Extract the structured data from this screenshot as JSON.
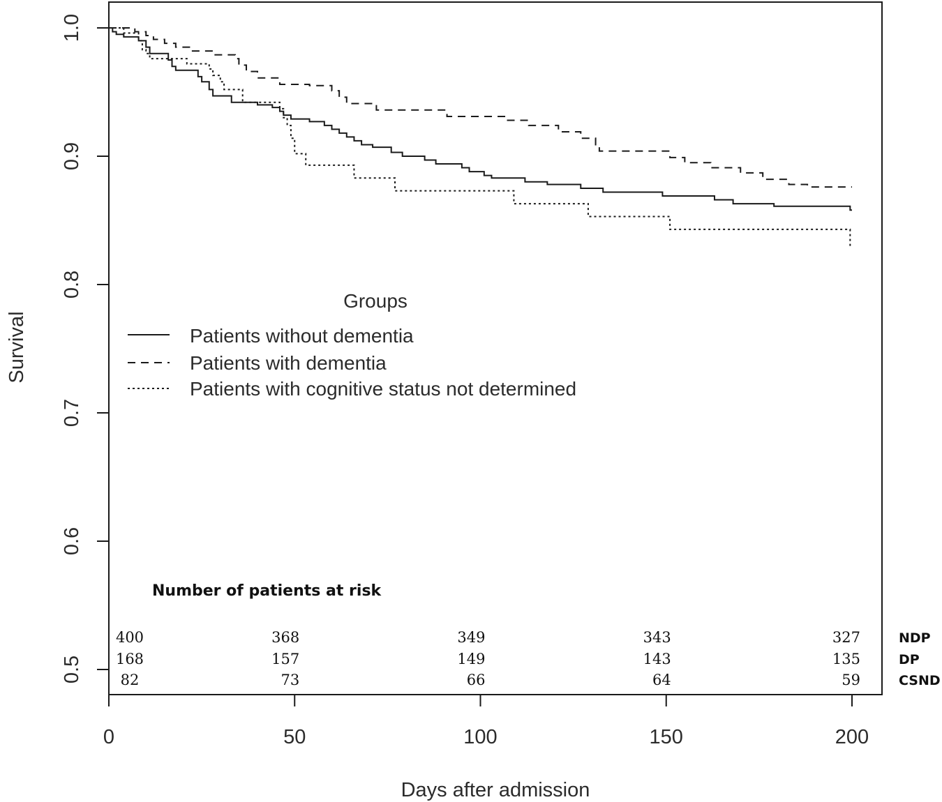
{
  "chart_data": {
    "type": "line",
    "xlabel": "Days after admission",
    "ylabel": "Survival",
    "xlim": [
      0,
      200
    ],
    "ylim": [
      0.5,
      1.0
    ],
    "x_ticks": [
      "0",
      "50",
      "100",
      "150",
      "200"
    ],
    "y_ticks": [
      "0.5",
      "0.6",
      "0.7",
      "0.8",
      "0.9",
      "1.0"
    ],
    "grid": false,
    "legend": {
      "title": "Groups",
      "placement": "center-left",
      "entries": [
        {
          "label": "Patients without dementia",
          "style": "solid"
        },
        {
          "label": "Patients with dementia",
          "style": "dashed"
        },
        {
          "label": "Patients with cognitive status not determined",
          "style": "dotted"
        }
      ]
    },
    "series": [
      {
        "name": "Patients without dementia",
        "style": "solid",
        "color": "#1a1a1a",
        "steps": [
          [
            0,
            1.0
          ],
          [
            1,
            0.997
          ],
          [
            2,
            0.995
          ],
          [
            4,
            0.993
          ],
          [
            8,
            0.99
          ],
          [
            10,
            0.985
          ],
          [
            11,
            0.98
          ],
          [
            16,
            0.975
          ],
          [
            17,
            0.97
          ],
          [
            18,
            0.967
          ],
          [
            24,
            0.962
          ],
          [
            25,
            0.958
          ],
          [
            27,
            0.952
          ],
          [
            28,
            0.947
          ],
          [
            33,
            0.942
          ],
          [
            40,
            0.94
          ],
          [
            44,
            0.938
          ],
          [
            46,
            0.935
          ],
          [
            47,
            0.932
          ],
          [
            49,
            0.929
          ],
          [
            54,
            0.927
          ],
          [
            58,
            0.924
          ],
          [
            60,
            0.921
          ],
          [
            62,
            0.918
          ],
          [
            64,
            0.915
          ],
          [
            66,
            0.912
          ],
          [
            68,
            0.909
          ],
          [
            71,
            0.907
          ],
          [
            76,
            0.903
          ],
          [
            79,
            0.9
          ],
          [
            85,
            0.897
          ],
          [
            88,
            0.894
          ],
          [
            95,
            0.891
          ],
          [
            97,
            0.888
          ],
          [
            101,
            0.885
          ],
          [
            103,
            0.883
          ],
          [
            112,
            0.88
          ],
          [
            118,
            0.878
          ],
          [
            127,
            0.875
          ],
          [
            133,
            0.872
          ],
          [
            149,
            0.869
          ],
          [
            163,
            0.866
          ],
          [
            168,
            0.863
          ],
          [
            179,
            0.861
          ],
          [
            199.5,
            0.858
          ]
        ],
        "end_x": 200
      },
      {
        "name": "Patients with dementia",
        "style": "dashed",
        "color": "#1a1a1a",
        "steps": [
          [
            0,
            1.0
          ],
          [
            7,
            0.997
          ],
          [
            10,
            0.994
          ],
          [
            12,
            0.991
          ],
          [
            15,
            0.988
          ],
          [
            18,
            0.985
          ],
          [
            22,
            0.982
          ],
          [
            28,
            0.979
          ],
          [
            34,
            0.976
          ],
          [
            35,
            0.971
          ],
          [
            37,
            0.966
          ],
          [
            40,
            0.961
          ],
          [
            46,
            0.956
          ],
          [
            54,
            0.955
          ],
          [
            60,
            0.951
          ],
          [
            62,
            0.946
          ],
          [
            64,
            0.941
          ],
          [
            72,
            0.936
          ],
          [
            91,
            0.931
          ],
          [
            107,
            0.928
          ],
          [
            113,
            0.924
          ],
          [
            121,
            0.919
          ],
          [
            127,
            0.914
          ],
          [
            131,
            0.909
          ],
          [
            132,
            0.904
          ],
          [
            151,
            0.899
          ],
          [
            155,
            0.895
          ],
          [
            162,
            0.891
          ],
          [
            170,
            0.887
          ],
          [
            176,
            0.882
          ],
          [
            183,
            0.878
          ],
          [
            188,
            0.876
          ]
        ],
        "end_x": 200
      },
      {
        "name": "Patients with cognitive status not determined",
        "style": "dotted",
        "color": "#1a1a1a",
        "steps": [
          [
            0,
            1.0
          ],
          [
            4,
            0.996
          ],
          [
            8,
            0.99
          ],
          [
            9,
            0.983
          ],
          [
            10,
            0.98
          ],
          [
            11,
            0.976
          ],
          [
            21,
            0.972
          ],
          [
            27,
            0.968
          ],
          [
            28,
            0.963
          ],
          [
            30,
            0.958
          ],
          [
            31,
            0.952
          ],
          [
            36,
            0.942
          ],
          [
            46,
            0.937
          ],
          [
            47,
            0.93
          ],
          [
            48,
            0.924
          ],
          [
            49,
            0.914
          ],
          [
            50,
            0.902
          ],
          [
            53,
            0.893
          ],
          [
            66,
            0.883
          ],
          [
            77,
            0.873
          ],
          [
            109,
            0.863
          ],
          [
            129,
            0.853
          ],
          [
            151,
            0.843
          ],
          [
            199.5,
            0.83
          ]
        ],
        "end_x": 200
      }
    ],
    "risk_table": {
      "title": "Number of patients at risk",
      "times": [
        0,
        50,
        100,
        150,
        200
      ],
      "rows": [
        {
          "group": "NDP",
          "values": [
            "400",
            "368",
            "349",
            "343",
            "327"
          ]
        },
        {
          "group": "DP",
          "values": [
            "168",
            "157",
            "149",
            "143",
            "135"
          ]
        },
        {
          "group": "CSND",
          "values": [
            "82",
            "73",
            "66",
            "64",
            "59"
          ]
        }
      ]
    }
  }
}
